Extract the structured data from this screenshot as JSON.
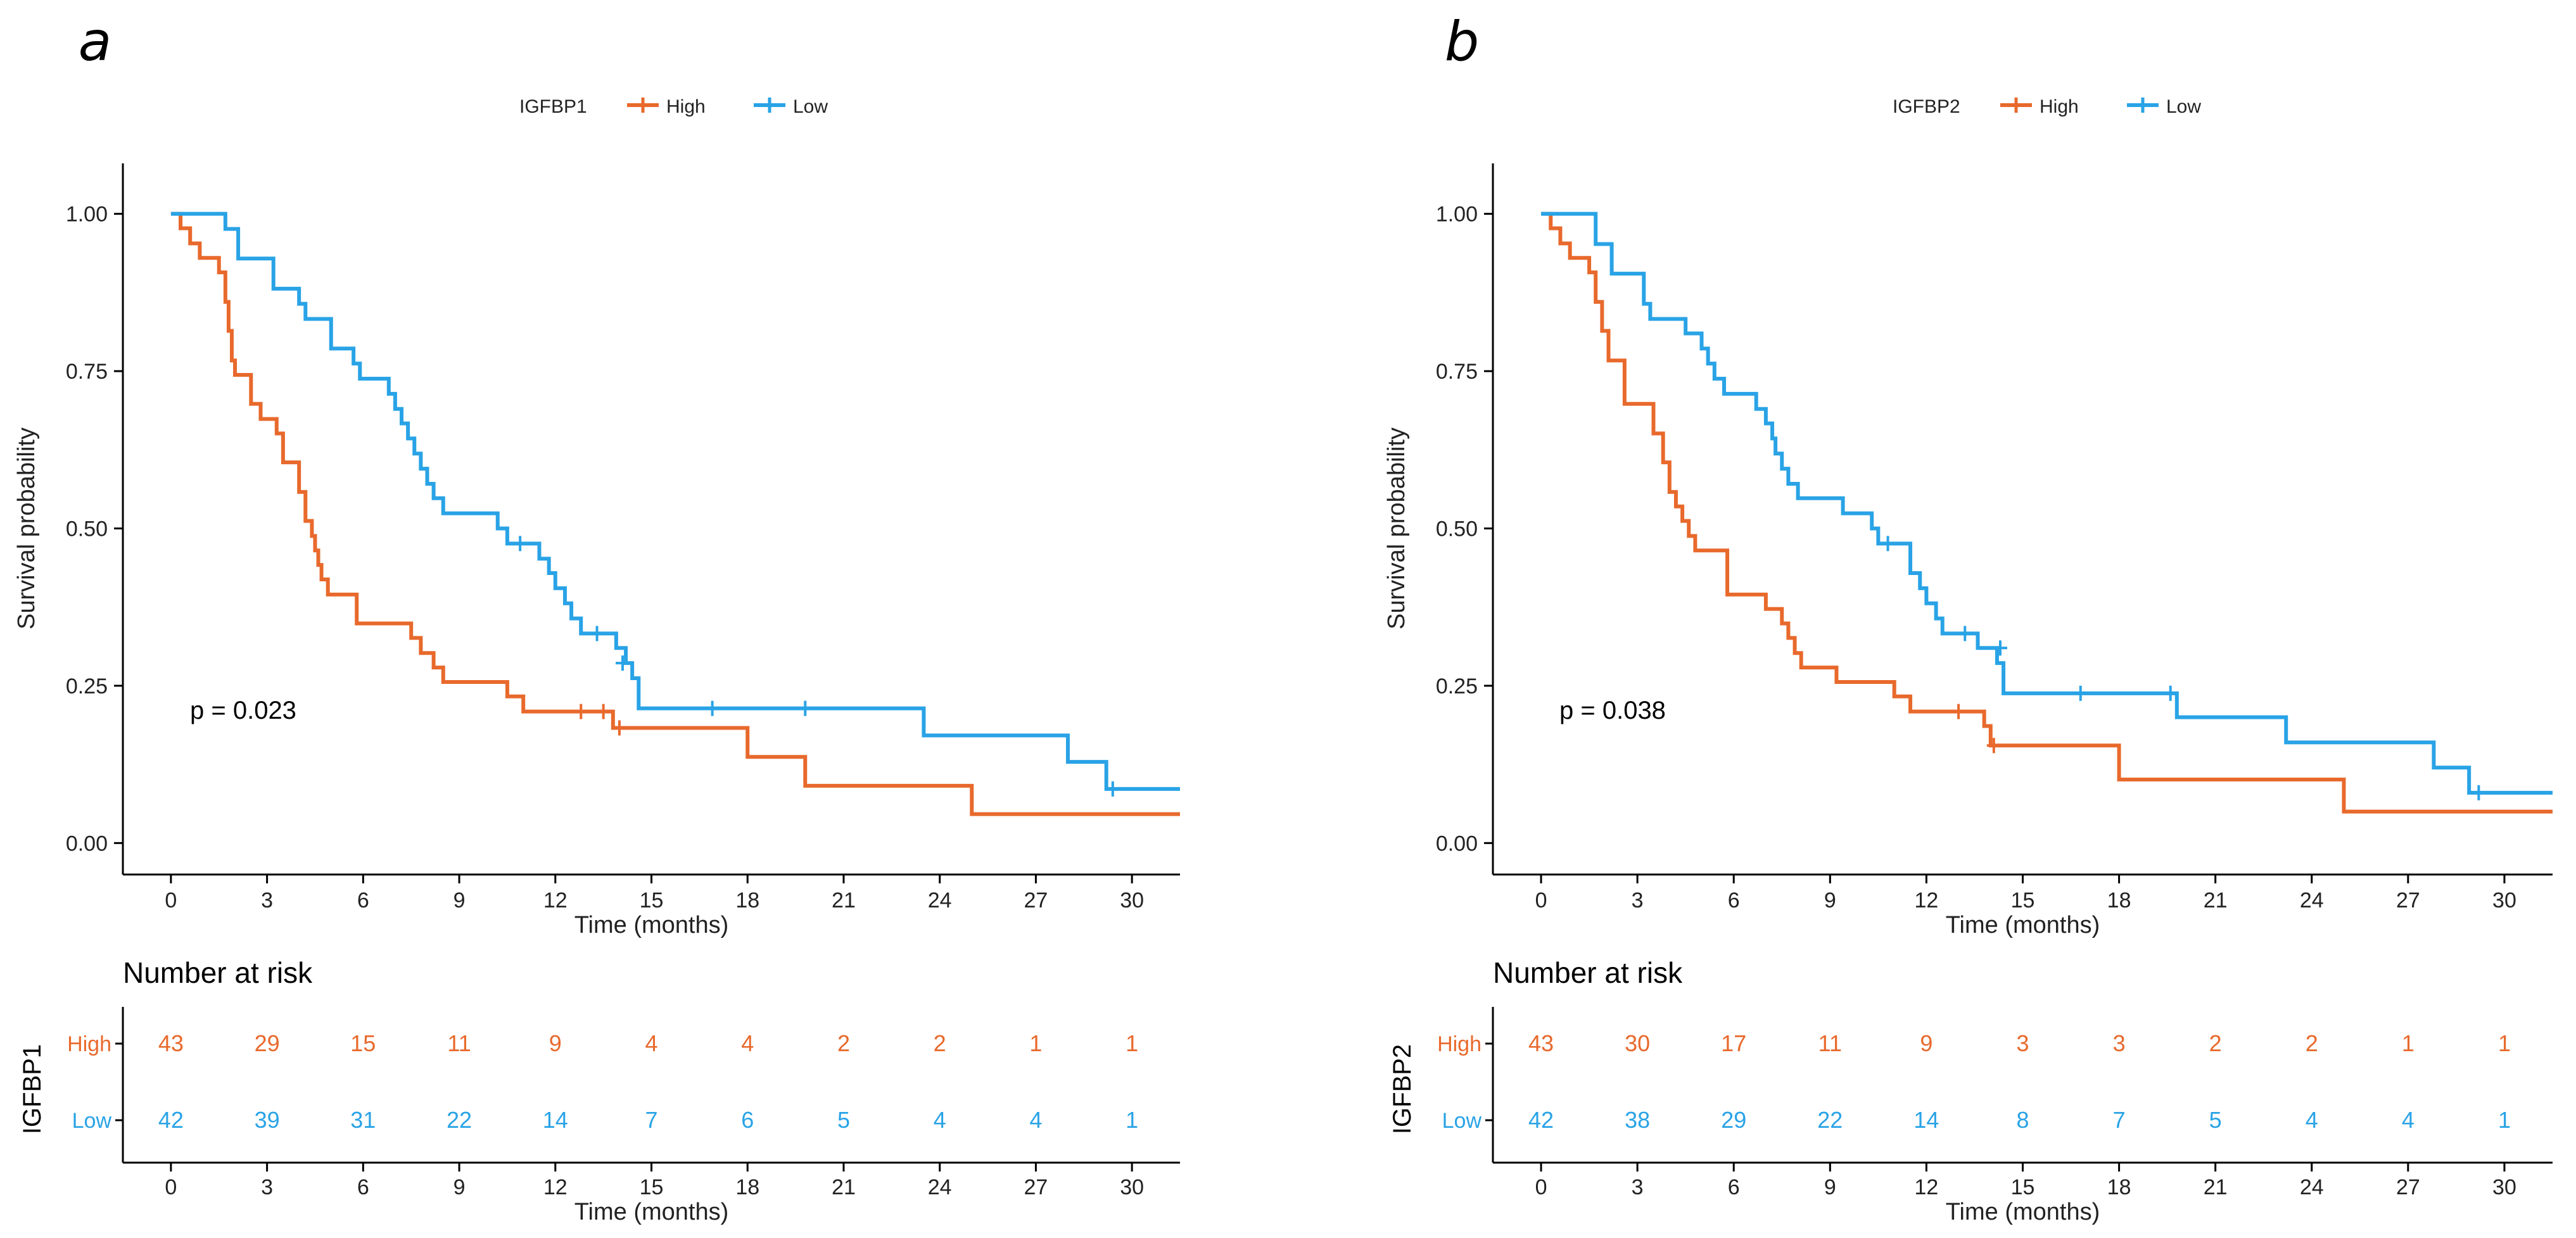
{
  "colors": {
    "high": "#E8692C",
    "low": "#29A3E6",
    "axis": "#000000",
    "text": "#222222"
  },
  "chart_data": [
    {
      "type": "line",
      "panel_label": "a",
      "gene": "IGFBP1",
      "legend": {
        "title": "IGFBP1",
        "entries": [
          "High",
          "Low"
        ],
        "placement": "top-center"
      },
      "xlabel": "Time (months)",
      "ylabel": "Survival probability",
      "xlim": [
        -1.5,
        31.5
      ],
      "ylim": [
        -0.05,
        1.05
      ],
      "xticks": [
        "0",
        "3",
        "6",
        "9",
        "12",
        "15",
        "18",
        "21",
        "24",
        "27",
        "30"
      ],
      "yticks": [
        "0.00",
        "0.25",
        "0.50",
        "0.75",
        "1.00"
      ],
      "pvalue_text": "p = 0.023",
      "series": [
        {
          "name": "High",
          "steps": [
            [
              0,
              1.0
            ],
            [
              0.3,
              0.977
            ],
            [
              0.6,
              0.953
            ],
            [
              0.9,
              0.93
            ],
            [
              1.5,
              0.907
            ],
            [
              1.7,
              0.86
            ],
            [
              1.8,
              0.814
            ],
            [
              1.9,
              0.767
            ],
            [
              2.0,
              0.744
            ],
            [
              2.5,
              0.698
            ],
            [
              2.8,
              0.674
            ],
            [
              3.3,
              0.651
            ],
            [
              3.5,
              0.605
            ],
            [
              4.0,
              0.558
            ],
            [
              4.2,
              0.512
            ],
            [
              4.4,
              0.488
            ],
            [
              4.5,
              0.465
            ],
            [
              4.6,
              0.442
            ],
            [
              4.7,
              0.419
            ],
            [
              4.9,
              0.395
            ],
            [
              5.8,
              0.349
            ],
            [
              7.5,
              0.326
            ],
            [
              7.8,
              0.302
            ],
            [
              8.2,
              0.279
            ],
            [
              8.5,
              0.256
            ],
            [
              10.5,
              0.233
            ],
            [
              11.0,
              0.209
            ],
            [
              13.8,
              0.183
            ],
            [
              18.0,
              0.137
            ],
            [
              19.8,
              0.091
            ],
            [
              25.0,
              0.046
            ],
            [
              31.5,
              0.046
            ]
          ],
          "censors": [
            [
              12.8,
              0.209
            ],
            [
              13.5,
              0.209
            ],
            [
              14.0,
              0.183
            ]
          ]
        },
        {
          "name": "Low",
          "steps": [
            [
              0,
              1.0
            ],
            [
              1.7,
              0.976
            ],
            [
              2.1,
              0.929
            ],
            [
              3.2,
              0.881
            ],
            [
              4.0,
              0.857
            ],
            [
              4.2,
              0.833
            ],
            [
              5.0,
              0.786
            ],
            [
              5.7,
              0.762
            ],
            [
              5.9,
              0.738
            ],
            [
              6.8,
              0.714
            ],
            [
              7.0,
              0.69
            ],
            [
              7.2,
              0.667
            ],
            [
              7.4,
              0.643
            ],
            [
              7.6,
              0.619
            ],
            [
              7.8,
              0.595
            ],
            [
              8.0,
              0.571
            ],
            [
              8.2,
              0.548
            ],
            [
              8.5,
              0.524
            ],
            [
              10.2,
              0.5
            ],
            [
              10.5,
              0.476
            ],
            [
              11.5,
              0.452
            ],
            [
              11.8,
              0.429
            ],
            [
              12.0,
              0.405
            ],
            [
              12.3,
              0.381
            ],
            [
              12.5,
              0.357
            ],
            [
              12.8,
              0.333
            ],
            [
              13.9,
              0.31
            ],
            [
              14.2,
              0.286
            ],
            [
              14.4,
              0.262
            ],
            [
              14.6,
              0.214
            ],
            [
              23.5,
              0.171
            ],
            [
              28.0,
              0.129
            ],
            [
              29.2,
              0.086
            ],
            [
              31.5,
              0.086
            ]
          ],
          "censors": [
            [
              10.9,
              0.476
            ],
            [
              13.3,
              0.333
            ],
            [
              14.1,
              0.286
            ],
            [
              16.9,
              0.214
            ],
            [
              19.8,
              0.214
            ],
            [
              29.4,
              0.086
            ]
          ]
        }
      ],
      "risk_table": {
        "title": "Number at risk",
        "xlabel": "Time (months)",
        "ylabel": "IGFBP1",
        "rows": [
          {
            "name": "High",
            "values": [
              "43",
              "29",
              "15",
              "11",
              "9",
              "4",
              "4",
              "2",
              "2",
              "1",
              "1"
            ]
          },
          {
            "name": "Low",
            "values": [
              "42",
              "39",
              "31",
              "22",
              "14",
              "7",
              "6",
              "5",
              "4",
              "4",
              "1"
            ]
          }
        ]
      }
    },
    {
      "type": "line",
      "panel_label": "b",
      "gene": "IGFBP2",
      "legend": {
        "title": "IGFBP2",
        "entries": [
          "High",
          "Low"
        ],
        "placement": "top-center"
      },
      "xlabel": "Time (months)",
      "ylabel": "Survival probability",
      "xlim": [
        -1.5,
        31.5
      ],
      "ylim": [
        -0.05,
        1.05
      ],
      "xticks": [
        "0",
        "3",
        "6",
        "9",
        "12",
        "15",
        "18",
        "21",
        "24",
        "27",
        "30"
      ],
      "yticks": [
        "0.00",
        "0.25",
        "0.50",
        "0.75",
        "1.00"
      ],
      "pvalue_text": "p = 0.038",
      "series": [
        {
          "name": "High",
          "steps": [
            [
              0,
              1.0
            ],
            [
              0.3,
              0.977
            ],
            [
              0.6,
              0.953
            ],
            [
              0.9,
              0.93
            ],
            [
              1.5,
              0.907
            ],
            [
              1.7,
              0.86
            ],
            [
              1.9,
              0.814
            ],
            [
              2.1,
              0.767
            ],
            [
              2.6,
              0.698
            ],
            [
              3.5,
              0.651
            ],
            [
              3.8,
              0.605
            ],
            [
              4.0,
              0.558
            ],
            [
              4.2,
              0.535
            ],
            [
              4.4,
              0.512
            ],
            [
              4.6,
              0.488
            ],
            [
              4.8,
              0.465
            ],
            [
              5.8,
              0.395
            ],
            [
              7.0,
              0.372
            ],
            [
              7.5,
              0.349
            ],
            [
              7.7,
              0.326
            ],
            [
              7.9,
              0.302
            ],
            [
              8.1,
              0.279
            ],
            [
              9.2,
              0.256
            ],
            [
              10.0,
              0.256
            ],
            [
              11.0,
              0.233
            ],
            [
              11.5,
              0.209
            ],
            [
              13.8,
              0.186
            ],
            [
              14.0,
              0.155
            ],
            [
              18.0,
              0.101
            ],
            [
              25.0,
              0.05
            ],
            [
              31.5,
              0.05
            ]
          ],
          "censors": [
            [
              13.0,
              0.209
            ],
            [
              14.1,
              0.155
            ]
          ]
        },
        {
          "name": "Low",
          "steps": [
            [
              0,
              1.0
            ],
            [
              1.7,
              0.952
            ],
            [
              2.2,
              0.905
            ],
            [
              3.2,
              0.857
            ],
            [
              3.4,
              0.833
            ],
            [
              4.5,
              0.81
            ],
            [
              5.0,
              0.786
            ],
            [
              5.2,
              0.762
            ],
            [
              5.4,
              0.738
            ],
            [
              5.7,
              0.714
            ],
            [
              6.7,
              0.69
            ],
            [
              7.0,
              0.667
            ],
            [
              7.2,
              0.643
            ],
            [
              7.3,
              0.619
            ],
            [
              7.5,
              0.595
            ],
            [
              7.7,
              0.571
            ],
            [
              8.0,
              0.548
            ],
            [
              9.4,
              0.524
            ],
            [
              10.3,
              0.5
            ],
            [
              10.5,
              0.476
            ],
            [
              11.5,
              0.429
            ],
            [
              11.8,
              0.405
            ],
            [
              12.0,
              0.381
            ],
            [
              12.3,
              0.357
            ],
            [
              12.5,
              0.333
            ],
            [
              13.6,
              0.31
            ],
            [
              14.2,
              0.286
            ],
            [
              14.4,
              0.238
            ],
            [
              19.8,
              0.2
            ],
            [
              23.2,
              0.16
            ],
            [
              27.8,
              0.12
            ],
            [
              28.9,
              0.08
            ],
            [
              31.5,
              0.08
            ]
          ],
          "censors": [
            [
              10.8,
              0.476
            ],
            [
              13.2,
              0.333
            ],
            [
              14.3,
              0.31
            ],
            [
              16.8,
              0.238
            ],
            [
              19.6,
              0.238
            ],
            [
              29.2,
              0.08
            ]
          ]
        }
      ],
      "risk_table": {
        "title": "Number at risk",
        "xlabel": "Time (months)",
        "ylabel": "IGFBP2",
        "rows": [
          {
            "name": "High",
            "values": [
              "43",
              "30",
              "17",
              "11",
              "9",
              "3",
              "3",
              "2",
              "2",
              "1",
              "1"
            ]
          },
          {
            "name": "Low",
            "values": [
              "42",
              "38",
              "29",
              "22",
              "14",
              "8",
              "7",
              "5",
              "4",
              "4",
              "1"
            ]
          }
        ]
      }
    }
  ]
}
